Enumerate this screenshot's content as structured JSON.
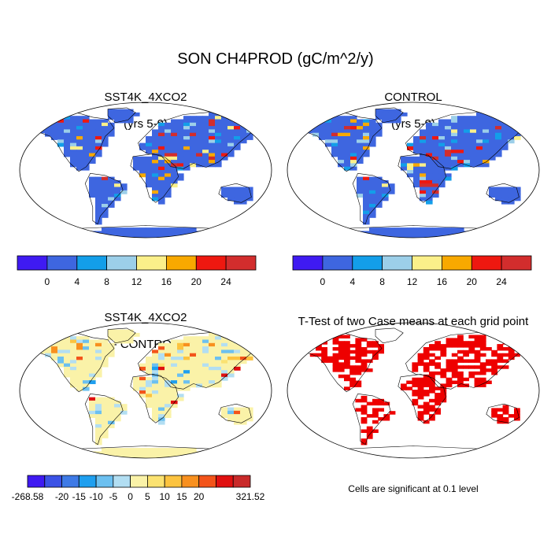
{
  "figure": {
    "title": "SON CH4PROD (gC/m^2/y)",
    "panels": [
      {
        "title": "SST4K_4XCO2",
        "subtitle": "(yrs 5-9)"
      },
      {
        "title": "CONTROL",
        "subtitle": "(yrs 5-9)"
      },
      {
        "title": "SST4K_4XCO2",
        "subtitle": "- CONTROL"
      },
      {
        "title": "T-Test of two Case means at each grid point",
        "subtitle": ""
      }
    ],
    "note": "Cells are significant at 0.1 level"
  },
  "chart_data": [
    {
      "type": "heatmap",
      "title": "SST4K_4XCO2 (yrs 5-9)",
      "projection": "global map",
      "colorbar": {
        "colors": [
          "#3f1af2",
          "#3e66e0",
          "#139ee9",
          "#9ccfe9",
          "#fbf08a",
          "#f8a900",
          "#ee1810",
          "#d22d2d"
        ],
        "tick_labels": [
          "0",
          "4",
          "8",
          "12",
          "16",
          "20",
          "24"
        ]
      }
    },
    {
      "type": "heatmap",
      "title": "CONTROL (yrs 5-9)",
      "projection": "global map",
      "colorbar": {
        "colors": [
          "#3f1af2",
          "#3e66e0",
          "#139ee9",
          "#9ccfe9",
          "#fbf08a",
          "#f8a900",
          "#ee1810",
          "#d22d2d"
        ],
        "tick_labels": [
          "0",
          "4",
          "8",
          "12",
          "16",
          "20",
          "24"
        ]
      }
    },
    {
      "type": "heatmap",
      "title": "SST4K_4XCO2 - CONTROL",
      "projection": "global map",
      "colorbar": {
        "colors": [
          "#3f1af2",
          "#3b52e6",
          "#3e7ae6",
          "#1f9fef",
          "#6cc0f0",
          "#b2def2",
          "#faf2a8",
          "#fbe271",
          "#fcc33f",
          "#f8901f",
          "#f3541a",
          "#e01010",
          "#c92a2a"
        ],
        "tick_labels": [
          "-268.58",
          "-20",
          "-15",
          "-10",
          "-5",
          "0",
          "5",
          "10",
          "15",
          "20",
          "321.52"
        ]
      }
    },
    {
      "type": "heatmap",
      "title": "T-Test of two Case means at each grid point",
      "projection": "global map",
      "marker_color": "#ee0000"
    }
  ]
}
